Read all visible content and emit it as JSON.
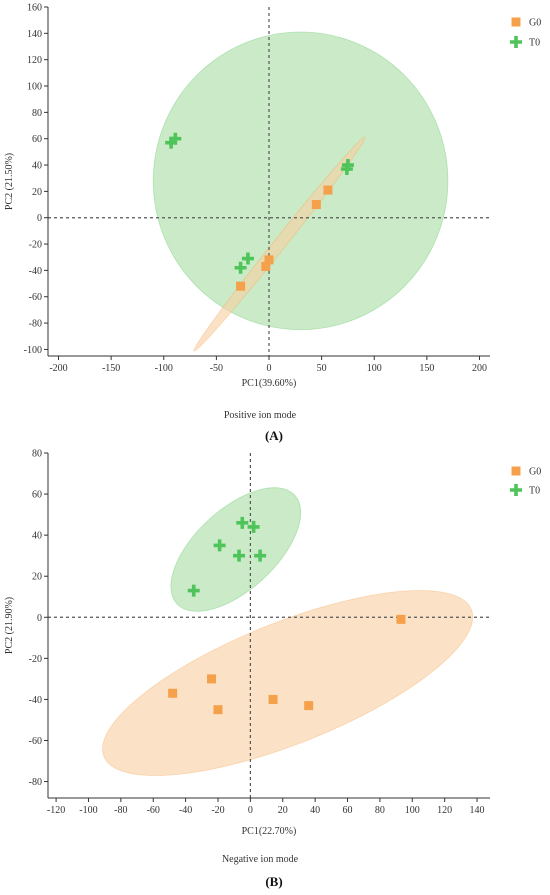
{
  "colors": {
    "G0": "#f5a04a",
    "T0": "#4ec45a",
    "G0_fill": "#f8cfa0",
    "T0_fill": "#a8dca4"
  },
  "chart_data": [
    {
      "type": "scatter",
      "panel_label": "(A)",
      "mode_label": "Positive ion mode",
      "xlabel": "PC1(39.60%)",
      "ylabel": "PC2 (21.50%)",
      "xlim": [
        -210,
        210
      ],
      "ylim": [
        -105,
        160
      ],
      "xticks": [
        -200,
        -150,
        -100,
        -50,
        0,
        50,
        100,
        150,
        200
      ],
      "xtick_labels": [
        "-200",
        "-150",
        "-100",
        "-50",
        "0",
        "50",
        "100",
        "150",
        "200"
      ],
      "yticks": [
        -100,
        -80,
        -60,
        -40,
        -20,
        0,
        20,
        40,
        60,
        80,
        100,
        120,
        140,
        160
      ],
      "ytick_labels": [
        "-100",
        "-80",
        "-60",
        "-40",
        "-20",
        "0",
        "20",
        "40",
        "60",
        "80",
        "100",
        "120",
        "140",
        "160"
      ],
      "legend": [
        "G0",
        "T0"
      ],
      "legend_position": "top-right",
      "series": [
        {
          "name": "G0",
          "marker": "square",
          "x": [
            -27,
            -3,
            0,
            45,
            56
          ],
          "y": [
            -52,
            -37,
            -32,
            10,
            21
          ]
        },
        {
          "name": "T0",
          "marker": "cross",
          "x": [
            -93,
            -89,
            -27,
            -20,
            74,
            75
          ],
          "y": [
            57,
            60,
            -38,
            -31,
            37,
            40
          ]
        }
      ],
      "ellipses": [
        {
          "group": "T0",
          "center": [
            30,
            28
          ],
          "rx": 140,
          "ry": 113,
          "angle": 0
        },
        {
          "group": "G0",
          "center": [
            10,
            -20
          ],
          "rx": 115,
          "ry": 5,
          "angle": 45
        }
      ],
      "reference_lines": {
        "x": 0,
        "y": 0
      }
    },
    {
      "type": "scatter",
      "panel_label": "(B)",
      "mode_label": "Negative ion mode",
      "xlabel": "PC1(22.70%)",
      "ylabel": "PC2 (21.90%)",
      "xlim": [
        -125,
        148
      ],
      "ylim": [
        -88,
        80
      ],
      "xticks": [
        -120,
        -100,
        -80,
        -60,
        -40,
        -20,
        0,
        20,
        40,
        60,
        80,
        100,
        120,
        140
      ],
      "xtick_labels": [
        "-120",
        "-100",
        "-80",
        "-60",
        "-40",
        "-20",
        "0",
        "20",
        "40",
        "60",
        "80",
        "100",
        "120",
        "140"
      ],
      "yticks": [
        -80,
        -60,
        -40,
        -20,
        0,
        20,
        40,
        60,
        80
      ],
      "ytick_labels": [
        "-80",
        "-60",
        "-40",
        "-20",
        "0",
        "20",
        "40",
        "60",
        "80"
      ],
      "legend": [
        "G0",
        "T0"
      ],
      "legend_position": "top-right",
      "series": [
        {
          "name": "G0",
          "marker": "square",
          "x": [
            -48,
            -24,
            -20,
            14,
            36,
            93
          ],
          "y": [
            -37,
            -30,
            -45,
            -40,
            -43,
            -1
          ]
        },
        {
          "name": "T0",
          "marker": "cross",
          "x": [
            -35,
            -19,
            -7,
            -5,
            2,
            6
          ],
          "y": [
            13,
            35,
            30,
            46,
            44,
            30
          ]
        }
      ],
      "ellipses": [
        {
          "group": "T0",
          "center": [
            -9,
            33
          ],
          "rx": 45,
          "ry": 21,
          "angle": 36
        },
        {
          "group": "G0",
          "center": [
            23,
            -32
          ],
          "rx": 119,
          "ry": 30,
          "angle": 17.5
        }
      ],
      "reference_lines": {
        "x": 0,
        "y": 0
      }
    }
  ]
}
